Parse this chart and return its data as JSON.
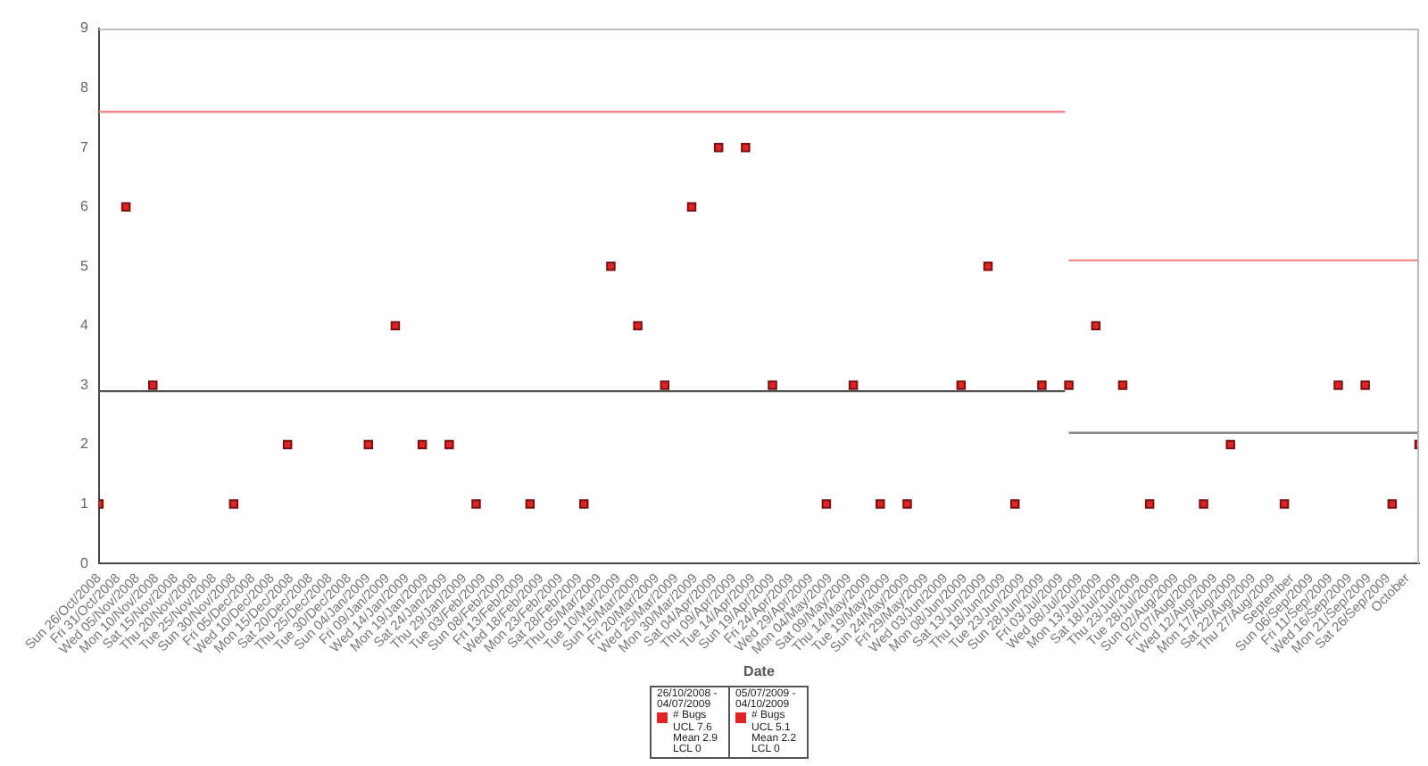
{
  "chart_data": {
    "type": "scatter",
    "xlabel": "Date",
    "legend": "bottom",
    "grid": false,
    "marker": "square",
    "xlim": [
      "2008-10-26",
      "2009-10-04"
    ],
    "ylim": [
      0,
      9
    ],
    "yticks": [
      0,
      1,
      2,
      3,
      4,
      5,
      6,
      7,
      8,
      9
    ],
    "xticks": [
      {
        "value": "2008-10-26",
        "label": "Sun 26/Oct/2008"
      },
      {
        "value": "2008-10-31",
        "label": "Fri 31/Oct/2008"
      },
      {
        "value": "2008-11-05",
        "label": "Wed 05/Nov/2008"
      },
      {
        "value": "2008-11-10",
        "label": "Mon 10/Nov/2008"
      },
      {
        "value": "2008-11-15",
        "label": "Sat 15/Nov/2008"
      },
      {
        "value": "2008-11-20",
        "label": "Thu 20/Nov/2008"
      },
      {
        "value": "2008-11-25",
        "label": "Tue 25/Nov/2008"
      },
      {
        "value": "2008-11-30",
        "label": "Sun 30/Nov/2008"
      },
      {
        "value": "2008-12-05",
        "label": "Fri 05/Dec/2008"
      },
      {
        "value": "2008-12-10",
        "label": "Wed 10/Dec/2008"
      },
      {
        "value": "2008-12-15",
        "label": "Mon 15/Dec/2008"
      },
      {
        "value": "2008-12-20",
        "label": "Sat 20/Dec/2008"
      },
      {
        "value": "2008-12-25",
        "label": "Thu 25/Dec/2008"
      },
      {
        "value": "2008-12-30",
        "label": "Tue 30/Dec/2008"
      },
      {
        "value": "2009-01-04",
        "label": "Sun 04/Jan/2009"
      },
      {
        "value": "2009-01-09",
        "label": "Fri 09/Jan/2009"
      },
      {
        "value": "2009-01-14",
        "label": "Wed 14/Jan/2009"
      },
      {
        "value": "2009-01-19",
        "label": "Mon 19/Jan/2009"
      },
      {
        "value": "2009-01-24",
        "label": "Sat 24/Jan/2009"
      },
      {
        "value": "2009-01-29",
        "label": "Thu 29/Jan/2009"
      },
      {
        "value": "2009-02-03",
        "label": "Tue 03/Feb/2009"
      },
      {
        "value": "2009-02-08",
        "label": "Sun 08/Feb/2009"
      },
      {
        "value": "2009-02-13",
        "label": "Fri 13/Feb/2009"
      },
      {
        "value": "2009-02-18",
        "label": "Wed 18/Feb/2009"
      },
      {
        "value": "2009-02-23",
        "label": "Mon 23/Feb/2009"
      },
      {
        "value": "2009-02-28",
        "label": "Sat 28/Feb/2009"
      },
      {
        "value": "2009-03-05",
        "label": "Thu 05/Mar/2009"
      },
      {
        "value": "2009-03-10",
        "label": "Tue 10/Mar/2009"
      },
      {
        "value": "2009-03-15",
        "label": "Sun 15/Mar/2009"
      },
      {
        "value": "2009-03-20",
        "label": "Fri 20/Mar/2009"
      },
      {
        "value": "2009-03-25",
        "label": "Wed 25/Mar/2009"
      },
      {
        "value": "2009-03-30",
        "label": "Mon 30/Mar/2009"
      },
      {
        "value": "2009-04-04",
        "label": "Sat 04/Apr/2009"
      },
      {
        "value": "2009-04-09",
        "label": "Thu 09/Apr/2009"
      },
      {
        "value": "2009-04-14",
        "label": "Tue 14/Apr/2009"
      },
      {
        "value": "2009-04-19",
        "label": "Sun 19/Apr/2009"
      },
      {
        "value": "2009-04-24",
        "label": "Fri 24/Apr/2009"
      },
      {
        "value": "2009-04-29",
        "label": "Wed 29/Apr/2009"
      },
      {
        "value": "2009-05-04",
        "label": "Mon 04/May/2009"
      },
      {
        "value": "2009-05-09",
        "label": "Sat 09/May/2009"
      },
      {
        "value": "2009-05-14",
        "label": "Thu 14/May/2009"
      },
      {
        "value": "2009-05-19",
        "label": "Tue 19/May/2009"
      },
      {
        "value": "2009-05-24",
        "label": "Sun 24/May/2009"
      },
      {
        "value": "2009-05-29",
        "label": "Fri 29/May/2009"
      },
      {
        "value": "2009-06-03",
        "label": "Wed 03/Jun/2009"
      },
      {
        "value": "2009-06-08",
        "label": "Mon 08/Jun/2009"
      },
      {
        "value": "2009-06-13",
        "label": "Sat 13/Jun/2009"
      },
      {
        "value": "2009-06-18",
        "label": "Thu 18/Jun/2009"
      },
      {
        "value": "2009-06-23",
        "label": "Tue 23/Jun/2009"
      },
      {
        "value": "2009-06-28",
        "label": "Sun 28/Jun/2009"
      },
      {
        "value": "2009-07-03",
        "label": "Fri 03/Jul/2009"
      },
      {
        "value": "2009-07-08",
        "label": "Wed 08/Jul/2009"
      },
      {
        "value": "2009-07-13",
        "label": "Mon 13/Jul/2009"
      },
      {
        "value": "2009-07-18",
        "label": "Sat 18/Jul/2009"
      },
      {
        "value": "2009-07-23",
        "label": "Thu 23/Jul/2009"
      },
      {
        "value": "2009-07-28",
        "label": "Tue 28/Jul/2009"
      },
      {
        "value": "2009-08-02",
        "label": "Sun 02/Aug/2009"
      },
      {
        "value": "2009-08-07",
        "label": "Fri 07/Aug/2009"
      },
      {
        "value": "2009-08-12",
        "label": "Wed 12/Aug/2009"
      },
      {
        "value": "2009-08-17",
        "label": "Mon 17/Aug/2009"
      },
      {
        "value": "2009-08-22",
        "label": "Sat 22/Aug/2009"
      },
      {
        "value": "2009-08-27",
        "label": "Thu 27/Aug/2009"
      },
      {
        "value": "2009-09-01",
        "label": "September"
      },
      {
        "value": "2009-09-06",
        "label": "Sun 06/Sep/2009"
      },
      {
        "value": "2009-09-11",
        "label": "Fri 11/Sep/2009"
      },
      {
        "value": "2009-09-16",
        "label": "Wed 16/Sep/2009"
      },
      {
        "value": "2009-09-21",
        "label": "Mon 21/Sep/2009"
      },
      {
        "value": "2009-09-26",
        "label": "Sat 26/Sep/2009"
      },
      {
        "value": "2009-10-01",
        "label": "October"
      }
    ],
    "series": [
      {
        "name": "# Bugs",
        "color": "#e02424",
        "x": [
          "2008-10-26",
          "2008-11-02",
          "2008-11-09",
          "2008-11-30",
          "2008-12-14",
          "2009-01-04",
          "2009-01-11",
          "2009-01-18",
          "2009-01-25",
          "2009-02-01",
          "2009-02-15",
          "2009-03-01",
          "2009-03-08",
          "2009-03-15",
          "2009-03-22",
          "2009-03-29",
          "2009-04-05",
          "2009-04-12",
          "2009-04-19",
          "2009-05-03",
          "2009-05-10",
          "2009-05-17",
          "2009-05-24",
          "2009-06-07",
          "2009-06-14",
          "2009-06-21",
          "2009-06-28"
        ],
        "values": [
          1,
          6,
          3,
          1,
          2,
          2,
          4,
          2,
          2,
          1,
          1,
          1,
          5,
          4,
          3,
          6,
          7,
          7,
          3,
          1,
          3,
          1,
          1,
          3,
          5,
          1,
          3
        ]
      },
      {
        "name": "# Bugs",
        "color": "#e02424",
        "x": [
          "2009-07-05",
          "2009-07-12",
          "2009-07-19",
          "2009-07-26",
          "2009-08-09",
          "2009-08-16",
          "2009-08-30",
          "2009-09-13",
          "2009-09-20",
          "2009-09-27",
          "2009-10-04"
        ],
        "values": [
          3,
          4,
          3,
          1,
          1,
          2,
          1,
          3,
          3,
          1,
          2
        ]
      },
      {
        "type": "line",
        "marker": "none",
        "color": "#f08a8a",
        "x": [
          "2008-10-26",
          "2009-07-04"
        ],
        "values": [
          7.6,
          7.6
        ]
      },
      {
        "type": "line",
        "marker": "none",
        "color": "#555555",
        "x": [
          "2008-10-26",
          "2009-07-04"
        ],
        "values": [
          2.9,
          2.9
        ]
      },
      {
        "type": "line",
        "marker": "none",
        "color": "#f08a8a",
        "x": [
          "2009-07-05",
          "2009-10-04"
        ],
        "values": [
          5.1,
          5.1
        ]
      },
      {
        "type": "line",
        "marker": "none",
        "color": "#888888",
        "x": [
          "2009-07-05",
          "2009-10-04"
        ],
        "values": [
          2.2,
          2.2
        ]
      }
    ],
    "annotations": [
      "26/10/2008 - 04/07/2009",
      "UCL 7.6\nMean 2.9\nLCL 0",
      "05/07/2009 - 04/10/2009",
      "UCL 5.1\nMean 2.2\nLCL 0"
    ]
  }
}
